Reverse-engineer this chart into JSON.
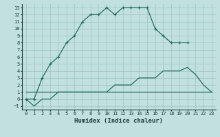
{
  "xlabel": "Humidex (Indice chaleur)",
  "bg_color": "#c2e0e0",
  "grid_color": "#a0c8c8",
  "line_color": "#1e6b60",
  "xlim": [
    -0.5,
    23.5
  ],
  "ylim": [
    -1.5,
    13.5
  ],
  "xticks": [
    0,
    1,
    2,
    3,
    4,
    5,
    6,
    7,
    8,
    9,
    10,
    11,
    12,
    13,
    14,
    15,
    16,
    17,
    18,
    19,
    20,
    21,
    22,
    23
  ],
  "yticks": [
    -1,
    0,
    1,
    2,
    3,
    4,
    5,
    6,
    7,
    8,
    9,
    10,
    11,
    12,
    13
  ],
  "line1_x": [
    0,
    1,
    2,
    3,
    4,
    5,
    6,
    7,
    8,
    9,
    10,
    11,
    12,
    13,
    14,
    15,
    16,
    17,
    18,
    19,
    20
  ],
  "line1_y": [
    0,
    0,
    3,
    5,
    6,
    8,
    9,
    11,
    12,
    12,
    13,
    12,
    13,
    13,
    13,
    13,
    10,
    9,
    8,
    8,
    8
  ],
  "line2_x": [
    0,
    23
  ],
  "line2_y": [
    1,
    1
  ],
  "line3_x": [
    0,
    1,
    2,
    3,
    4,
    5,
    6,
    7,
    8,
    9,
    10,
    11,
    12,
    13,
    14,
    15,
    16,
    17,
    18,
    19,
    20,
    21,
    22,
    23
  ],
  "line3_y": [
    0,
    -1,
    0,
    0,
    1,
    1,
    1,
    1,
    1,
    1,
    1,
    2,
    2,
    2,
    3,
    3,
    3,
    4,
    4,
    4,
    4.5,
    3.5,
    2,
    1
  ],
  "xlabel_fontsize": 6.5,
  "tick_fontsize": 5
}
